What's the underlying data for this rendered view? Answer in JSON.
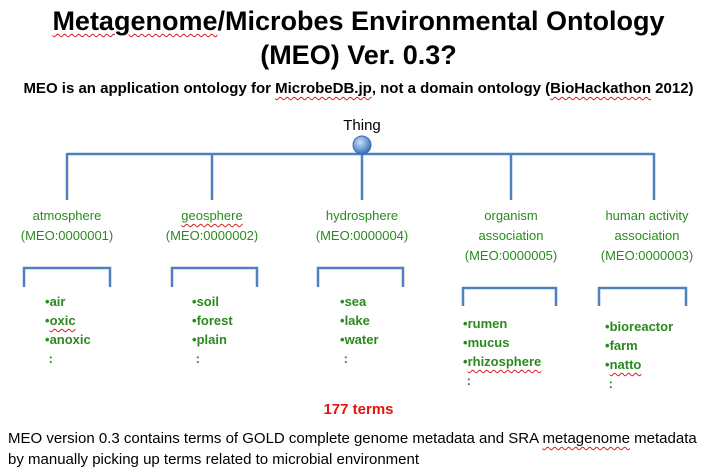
{
  "title": {
    "line1_part1": "Metagenome",
    "line1_part2": "/Microbes Environmental Ontology",
    "line2": "(MEO) Ver. 0.3?"
  },
  "subtitle": {
    "part1": "MEO is an application ontology for ",
    "link1": "MicrobeDB.jp",
    "part2": ", not a domain ontology (",
    "link2": "BioHackathon",
    "part3": " 2012)"
  },
  "root": "Thing",
  "categories": [
    {
      "line1": "atmosphere",
      "line2": "(MEO:0000001)",
      "line3": "",
      "items": [
        "air",
        "oxic",
        "anoxic",
        ":"
      ]
    },
    {
      "line1": "geosphere",
      "line2": "(MEO:0000002)",
      "line3": "",
      "items": [
        "soil",
        "forest",
        "plain",
        ":"
      ]
    },
    {
      "line1": "hydrosphere",
      "line2": "(MEO:0000004)",
      "line3": "",
      "items": [
        "sea",
        "lake",
        "water",
        ":"
      ]
    },
    {
      "line1": "organism",
      "line2": "association",
      "line3": "(MEO:0000005)",
      "items": [
        "rumen",
        "mucus",
        "rhizosphere",
        ":"
      ]
    },
    {
      "line1": "human activity",
      "line2": "association",
      "line3": "(MEO:0000003)",
      "items": [
        "bioreactor",
        "farm",
        "natto",
        ":"
      ]
    }
  ],
  "terms_count": "177 terms",
  "note": "MEO version 0.3 contains terms of GOLD complete genome metadata and SRA metagenome metadata by manually picking up terms related to microbial environment",
  "note_parts": {
    "a": "MEO version 0.3 contains terms of GOLD complete genome metadata and SRA ",
    "b": "metagenome",
    "c": " metadata by manually picking up terms related to microbial environment"
  },
  "colors": {
    "category_text": "#2a8a1f",
    "tree_lines": "#4f81bd",
    "terms": "#e3130f"
  }
}
